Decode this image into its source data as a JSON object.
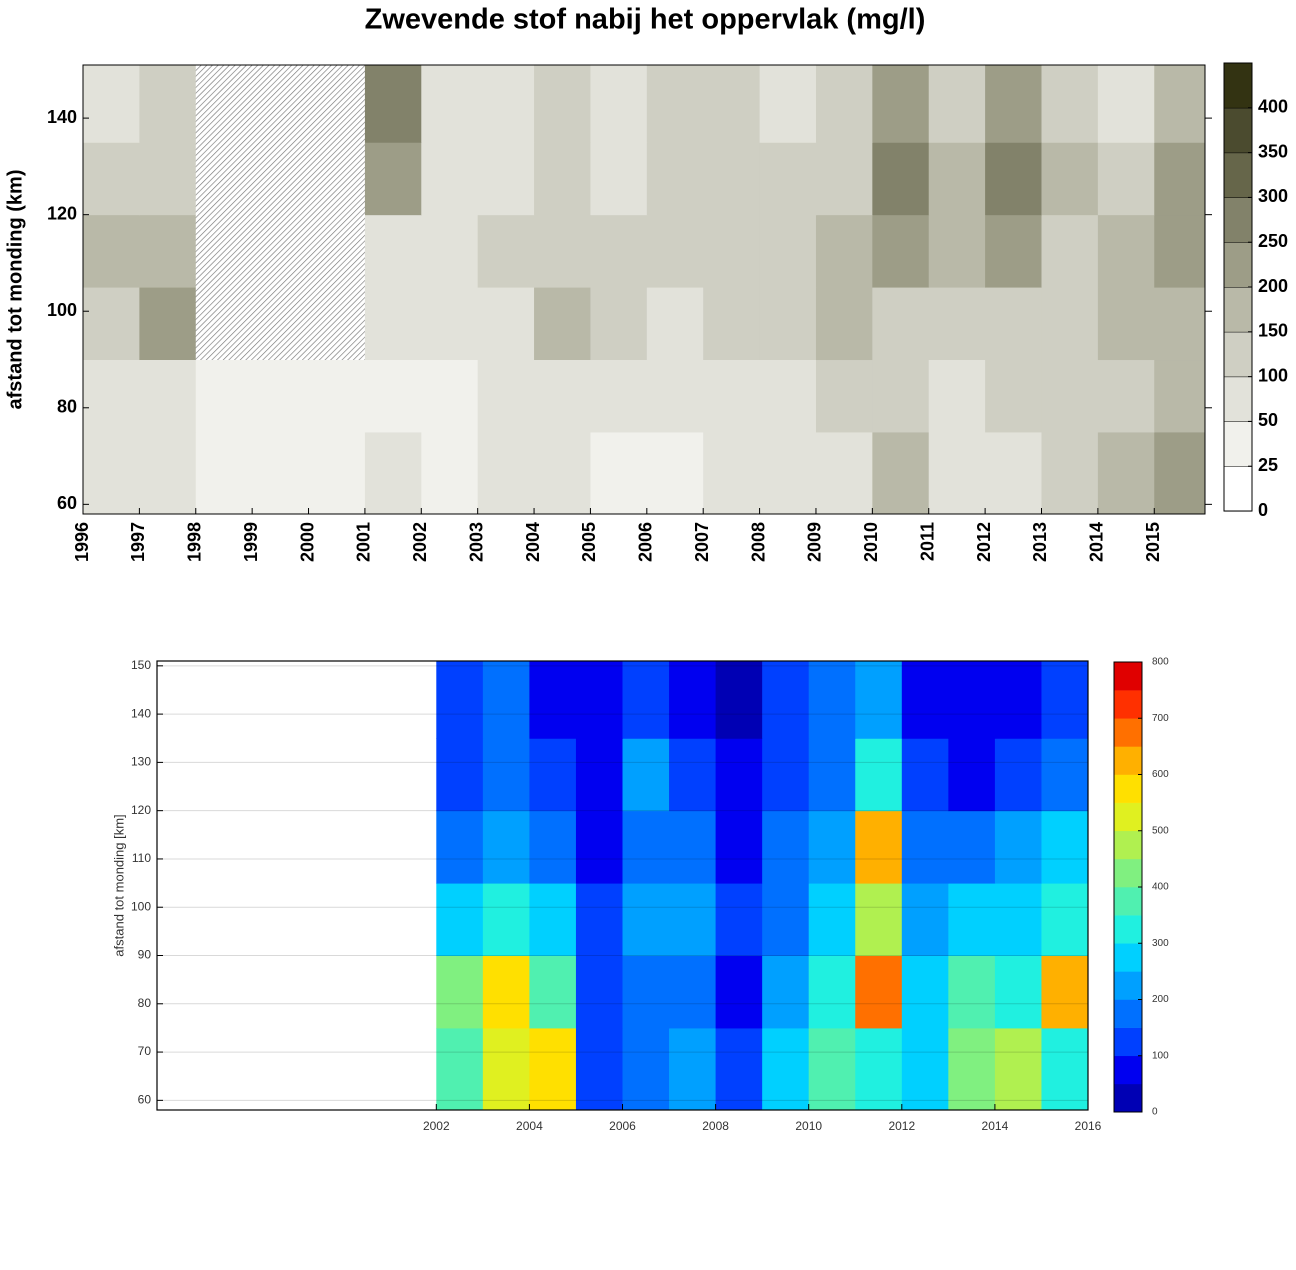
{
  "chart_data": [
    {
      "type": "contour",
      "title": "Zwevende stof nabij het oppervlak (mg/l)",
      "y_label": "afstand tot monding (km)",
      "x": [
        1996,
        1997,
        1998,
        1999,
        2000,
        2001,
        2002,
        2003,
        2004,
        2005,
        2006,
        2007,
        2008,
        2009,
        2010,
        2011,
        2012,
        2013,
        2014,
        2015
      ],
      "y": [
        58,
        75,
        90,
        105,
        120,
        135
      ],
      "z": [
        [
          60,
          50,
          40,
          40,
          30,
          70,
          40,
          50,
          80,
          40,
          40,
          50,
          60,
          60,
          150,
          50,
          80,
          120,
          150,
          200
        ],
        [
          60,
          70,
          40,
          30,
          30,
          40,
          40,
          60,
          70,
          50,
          60,
          60,
          60,
          120,
          120,
          60,
          100,
          100,
          120,
          160
        ],
        [
          120,
          200,
          null,
          null,
          null,
          60,
          70,
          80,
          150,
          100,
          80,
          100,
          130,
          150,
          140,
          130,
          140,
          120,
          180,
          160
        ],
        [
          150,
          150,
          null,
          null,
          null,
          80,
          80,
          100,
          140,
          100,
          120,
          130,
          140,
          160,
          200,
          180,
          220,
          120,
          150,
          200
        ],
        [
          100,
          120,
          null,
          null,
          null,
          200,
          60,
          80,
          120,
          80,
          120,
          140,
          100,
          120,
          260,
          150,
          280,
          150,
          100,
          220
        ],
        [
          80,
          100,
          null,
          null,
          null,
          250,
          60,
          60,
          120,
          60,
          100,
          120,
          80,
          100,
          200,
          120,
          200,
          120,
          80,
          150
        ]
      ],
      "missing": "hatch",
      "xlim": [
        1996,
        2015.9
      ],
      "xticks": [
        1996,
        1997,
        1998,
        1999,
        2000,
        2001,
        2002,
        2003,
        2004,
        2005,
        2006,
        2007,
        2008,
        2009,
        2010,
        2011,
        2012,
        2013,
        2014,
        2015
      ],
      "ylim": [
        58,
        151
      ],
      "yticks": [
        60,
        80,
        100,
        120,
        140
      ],
      "levels": [
        0,
        25,
        50,
        100,
        150,
        200,
        250,
        300,
        350,
        400,
        450
      ],
      "colors": [
        "#ffffff",
        "#f1f1ec",
        "#e2e2da",
        "#cfcfc3",
        "#b9b9a8",
        "#9d9d87",
        "#82826a",
        "#66664a",
        "#4b4b2f",
        "#333312"
      ],
      "cticks": [
        0,
        25,
        50,
        100,
        150,
        200,
        250,
        300,
        350,
        400
      ],
      "grid": false
    },
    {
      "type": "contour",
      "y_label": "afstand tot monding [km]",
      "x": [
        2002,
        2003,
        2004,
        2005,
        2006,
        2007,
        2008,
        2009,
        2010,
        2011,
        2012,
        2013,
        2014,
        2015
      ],
      "y": [
        58,
        75,
        90,
        105,
        120,
        135
      ],
      "z": [
        [
          350,
          500,
          550,
          100,
          150,
          200,
          120,
          250,
          350,
          300,
          250,
          400,
          450,
          300
        ],
        [
          400,
          550,
          350,
          100,
          150,
          180,
          80,
          200,
          300,
          650,
          280,
          350,
          300,
          600
        ],
        [
          250,
          300,
          250,
          100,
          200,
          200,
          100,
          180,
          250,
          450,
          200,
          250,
          250,
          300
        ],
        [
          150,
          200,
          150,
          50,
          150,
          150,
          80,
          150,
          200,
          600,
          180,
          150,
          200,
          250
        ],
        [
          120,
          150,
          100,
          50,
          200,
          100,
          60,
          120,
          150,
          300,
          100,
          80,
          120,
          150
        ],
        [
          100,
          150,
          80,
          50,
          120,
          80,
          40,
          100,
          150,
          200,
          80,
          60,
          80,
          100
        ]
      ],
      "missing": "blank",
      "xlim": [
        1996,
        2016
      ],
      "xticks": [
        2002,
        2004,
        2006,
        2008,
        2010,
        2012,
        2014,
        2016
      ],
      "ylim": [
        58,
        151
      ],
      "yticks": [
        60,
        70,
        80,
        90,
        100,
        110,
        120,
        130,
        140,
        150
      ],
      "levels": [
        0,
        50,
        100,
        150,
        200,
        250,
        300,
        350,
        400,
        450,
        500,
        550,
        600,
        650,
        700,
        750,
        800
      ],
      "colors": [
        "#0000b4",
        "#0000f0",
        "#0040ff",
        "#0070ff",
        "#00a0ff",
        "#00d0ff",
        "#20f0e0",
        "#50f0b0",
        "#80f080",
        "#b0f050",
        "#e0f020",
        "#ffe000",
        "#ffb000",
        "#ff7000",
        "#ff3000",
        "#e00000"
      ],
      "cticks": [
        0,
        100,
        200,
        300,
        400,
        500,
        600,
        700,
        800
      ],
      "grid": true
    }
  ]
}
